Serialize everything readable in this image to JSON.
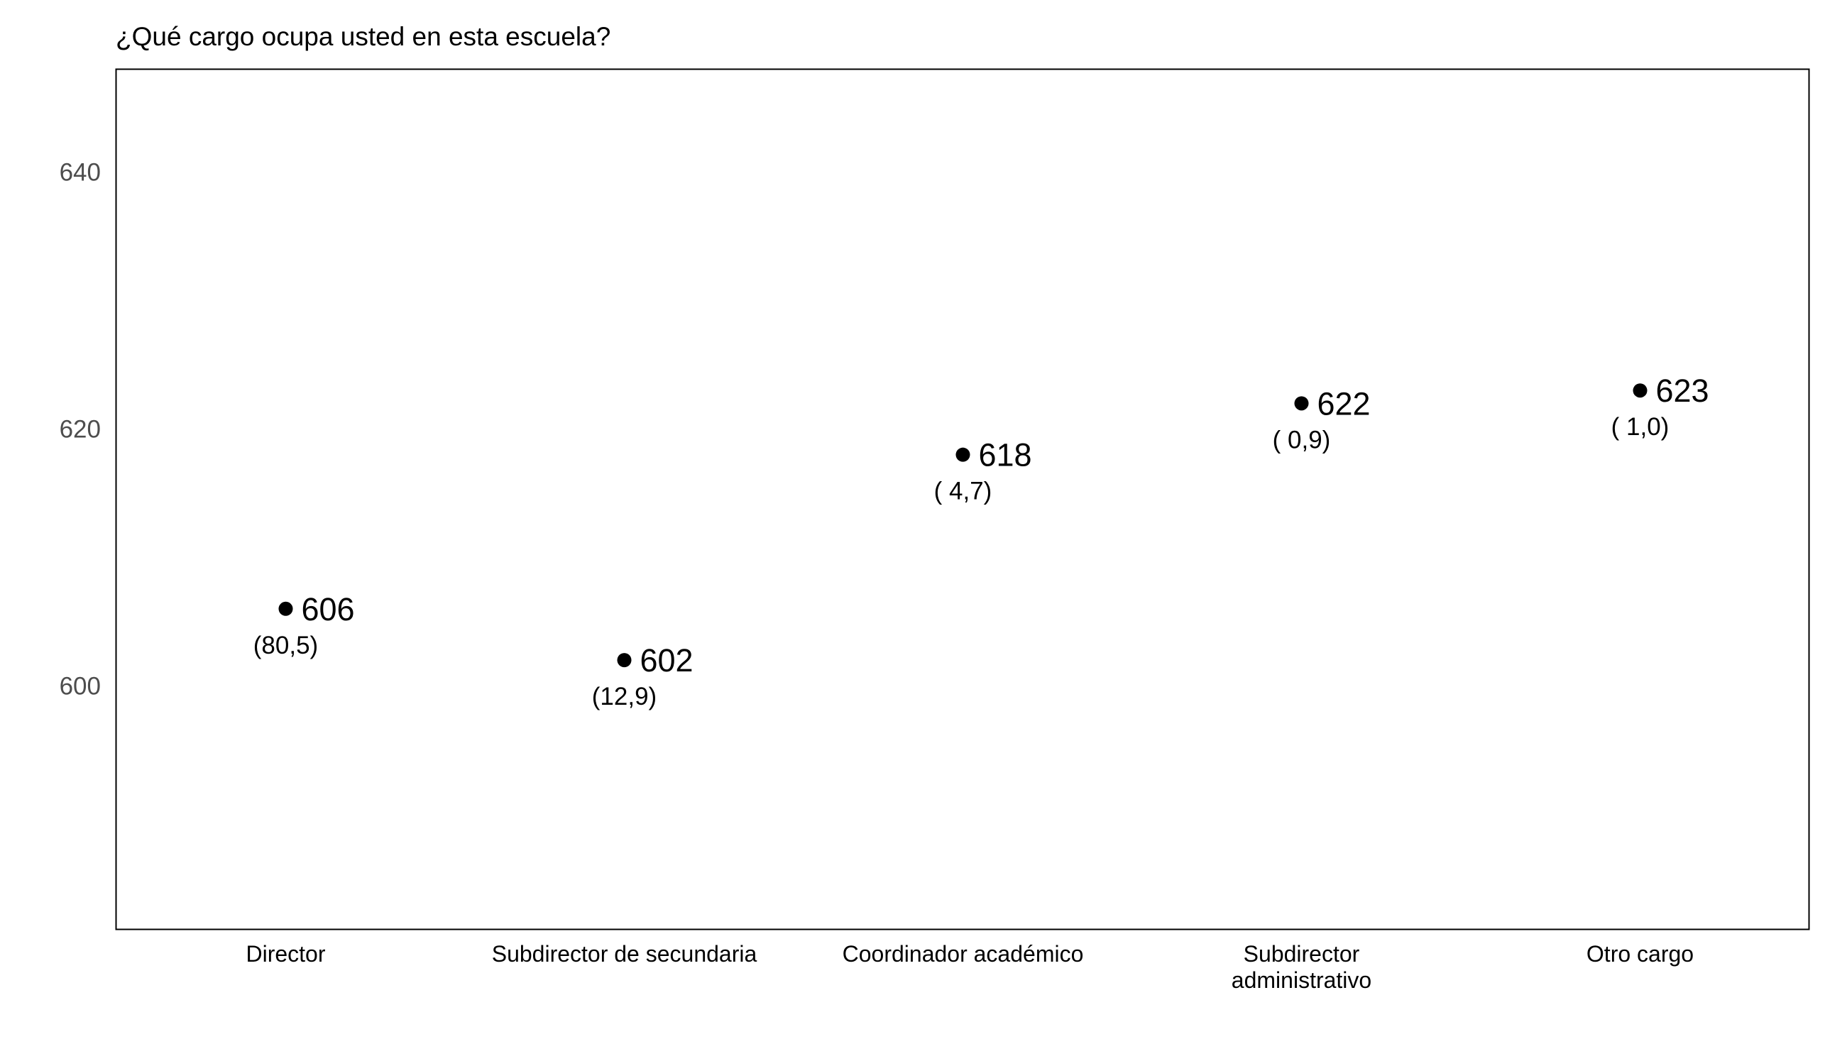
{
  "chart_data": {
    "type": "scatter",
    "title": "¿Qué cargo ocupa usted en esta escuela?",
    "xlabel": "",
    "ylabel": "",
    "categories": [
      [
        "Director"
      ],
      [
        "Subdirector de secundaria"
      ],
      [
        "Coordinador académico"
      ],
      [
        "Subdirector",
        "administrativo"
      ],
      [
        "Otro cargo"
      ]
    ],
    "values": [
      606,
      602,
      618,
      622,
      623
    ],
    "value_labels": [
      "606",
      "602",
      "618",
      "622",
      "623"
    ],
    "percent_labels": [
      "(80,5)",
      "(12,9)",
      "( 4,7)",
      "( 0,9)",
      "( 1,0)"
    ],
    "y_ticks": [
      600,
      620,
      640
    ],
    "y_tick_labels": [
      "600",
      "620",
      "640"
    ],
    "ylim": [
      581,
      648
    ],
    "grid": false,
    "legend": "none",
    "colors": {
      "point": "#000000",
      "frame": "#000000",
      "y_tick_text": "#4d4d4d",
      "text": "#000000"
    }
  }
}
